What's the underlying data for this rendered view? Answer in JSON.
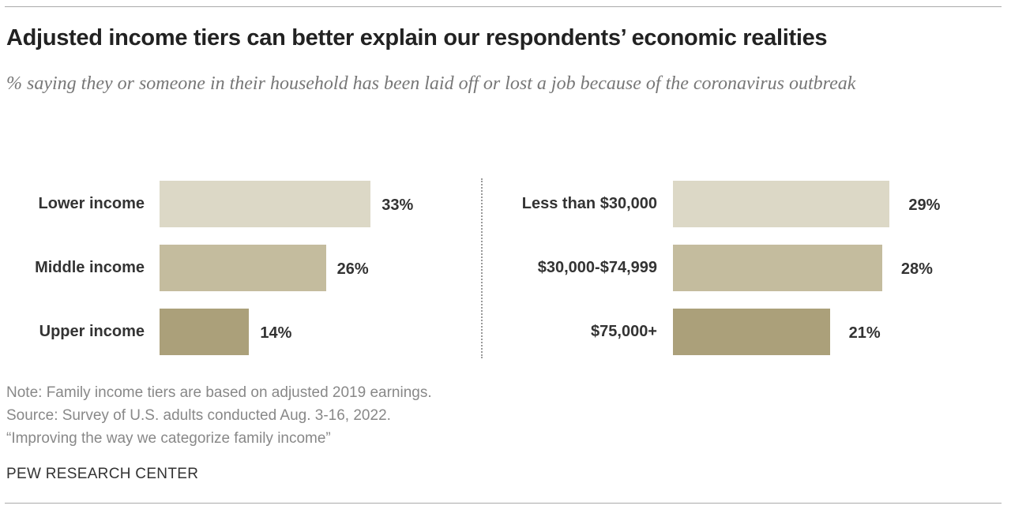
{
  "title": "Adjusted income tiers can better explain our respondents’ economic realities",
  "subtitle": "% saying they or someone in their household has been laid off or lost a job because of the coronavirus outbreak",
  "chart_data": [
    {
      "type": "bar",
      "orientation": "horizontal",
      "categories": [
        "Lower income",
        "Middle income",
        "Upper income"
      ],
      "values": [
        33,
        26,
        14
      ],
      "value_labels": [
        "33%",
        "26%",
        "14%"
      ],
      "colors": [
        "#dcd8c6",
        "#c4bc9e",
        "#aba07a"
      ],
      "grid": false
    },
    {
      "type": "bar",
      "orientation": "horizontal",
      "categories": [
        "Less than $30,000",
        "$30,000-$74,999",
        "$75,000+"
      ],
      "values": [
        29,
        28,
        21
      ],
      "value_labels": [
        "29%",
        "28%",
        "21%"
      ],
      "colors": [
        "#dcd8c6",
        "#c4bc9e",
        "#aba07a"
      ],
      "grid": false
    }
  ],
  "notes": [
    "Note: Family income tiers are based on adjusted 2019 earnings.",
    "Source: Survey of U.S. adults conducted Aug. 3-16, 2022.",
    "“Improving the way we categorize family income”"
  ],
  "brand": "PEW RESEARCH CENTER"
}
